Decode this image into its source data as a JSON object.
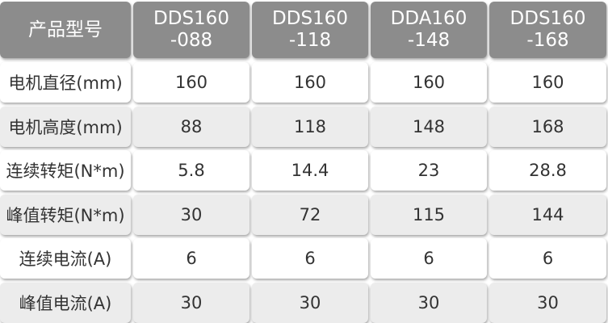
{
  "table": {
    "header": [
      [
        "产品型号"
      ],
      [
        "DDS160",
        "-088"
      ],
      [
        "DDS160",
        "-118"
      ],
      [
        "DDA160",
        "-148"
      ],
      [
        "DDS160",
        "-168"
      ]
    ],
    "rows": [
      [
        "电机直径(mm)",
        160,
        160,
        160,
        160
      ],
      [
        "电机高度(mm)",
        88,
        118,
        148,
        168
      ],
      [
        "连续转矩(N*m)",
        5.8,
        14.4,
        23,
        28.8
      ],
      [
        "峰值转矩(N*m)",
        30,
        72,
        115,
        144
      ],
      [
        "连续电流(A)",
        6,
        6,
        6,
        6
      ],
      [
        "峰值电流(A)",
        30,
        30,
        30,
        30
      ]
    ]
  }
}
